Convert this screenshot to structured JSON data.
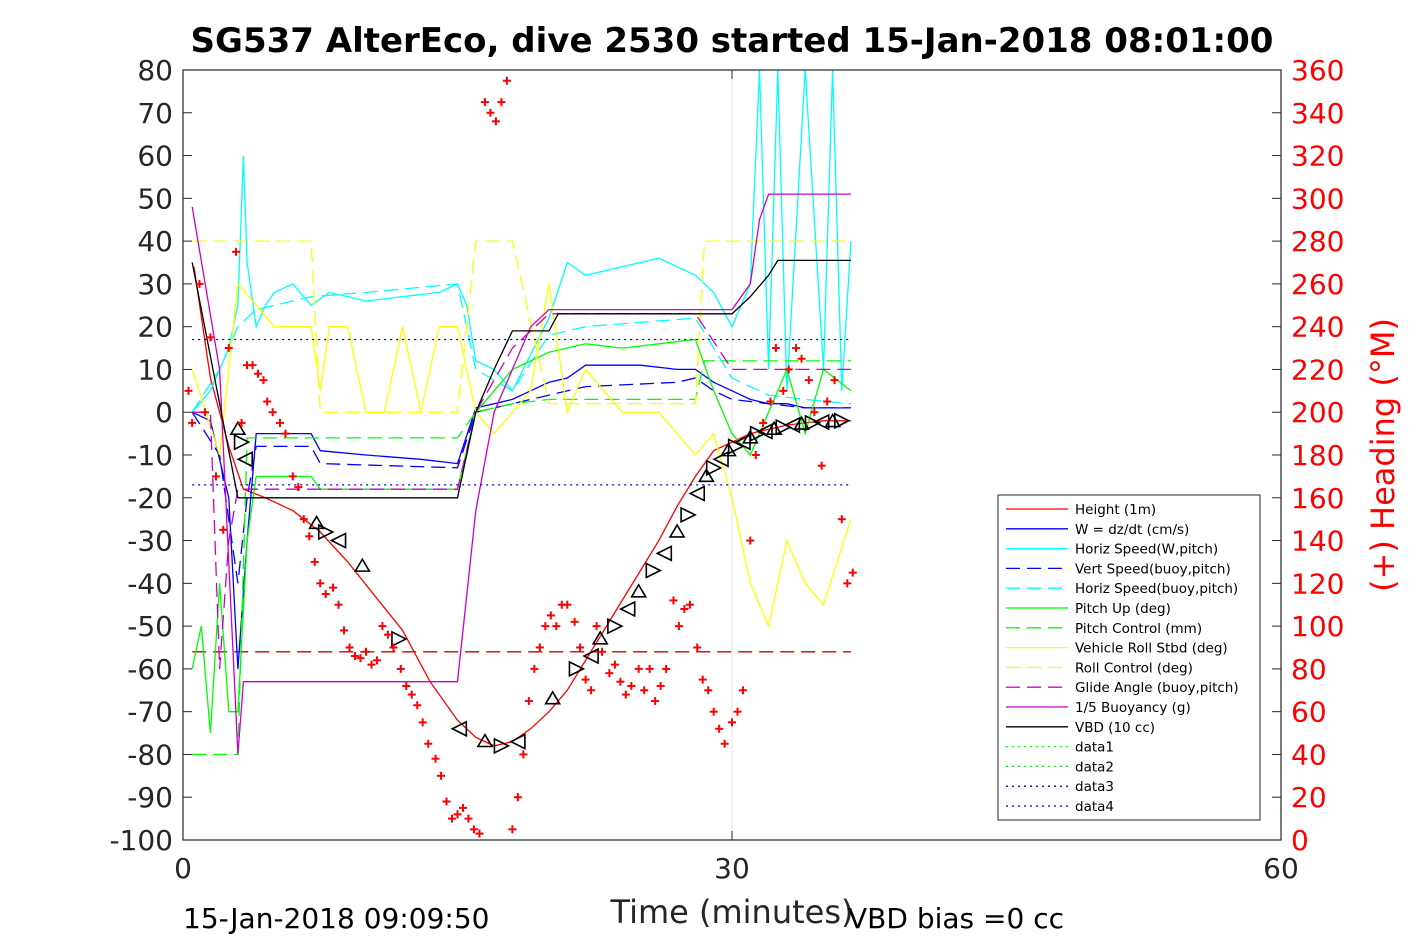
{
  "title": "SG537 AlterEco, dive 2530 started 15-Jan-2018 08:01:00",
  "footer": {
    "timestamp": "15-Jan-2018 09:09:50",
    "vbd_bias": "VBD bias =0 cc"
  },
  "chart_data": {
    "type": "line",
    "xlabel": "Time (minutes)",
    "ylabel": "",
    "y2label": "(+) Heading (°M)",
    "xlim": [
      0,
      60
    ],
    "ylim": [
      -100,
      80
    ],
    "y2lim": [
      0,
      360
    ],
    "xticks": [
      "0",
      "30",
      "60"
    ],
    "yticks": [
      "80",
      "70",
      "60",
      "50",
      "40",
      "30",
      "20",
      "10",
      "0",
      "-10",
      "-20",
      "-30",
      "-40",
      "-50",
      "-60",
      "-70",
      "-80",
      "-90",
      "-100"
    ],
    "y2ticks": [
      "360",
      "340",
      "320",
      "300",
      "280",
      "260",
      "240",
      "220",
      "200",
      "180",
      "160",
      "140",
      "120",
      "100",
      "80",
      "60",
      "40",
      "20",
      "0"
    ],
    "grid": "x-at-30",
    "legend_position": "bottom-right",
    "series": [
      {
        "name": "Height (1m)",
        "color": "#ff0000",
        "style": "solid",
        "x": [
          0.6,
          1.5,
          2.5,
          3.3,
          4.5,
          6,
          7.5,
          9,
          10.5,
          12,
          13.5,
          15,
          16,
          17,
          18,
          19,
          20,
          21,
          22,
          23,
          24,
          25,
          26,
          27,
          28,
          29,
          30,
          31,
          32,
          33,
          34,
          35,
          36.5
        ],
        "y": [
          34,
          8,
          -8,
          -18,
          -20,
          -23,
          -28,
          -35,
          -43,
          -51,
          -63,
          -72,
          -76,
          -78,
          -77,
          -74,
          -70,
          -65,
          -58,
          -51,
          -44,
          -37,
          -30,
          -22,
          -15,
          -9,
          -7,
          -5,
          -4,
          -3,
          -2.5,
          -2,
          -2
        ]
      },
      {
        "name": "W = dz/dt (cm/s)",
        "color": "#0000ff",
        "style": "solid",
        "x": [
          0.5,
          1.5,
          2.5,
          3,
          3.5,
          4,
          5,
          7,
          7.5,
          10,
          13,
          15,
          16,
          17,
          18,
          19,
          20,
          21,
          22,
          23,
          25,
          27,
          28,
          29,
          30,
          31,
          32,
          33,
          34,
          35,
          36.5
        ],
        "y": [
          0,
          -2,
          -20,
          -60,
          -30,
          -5,
          -5,
          -5,
          -9,
          -10,
          -11,
          -12,
          1,
          2,
          3,
          5,
          7,
          8,
          11,
          11,
          11,
          10,
          10,
          7,
          5,
          3,
          2,
          2,
          1,
          1,
          1
        ]
      },
      {
        "name": "Horiz Speed(W,pitch)",
        "color": "#00ffff",
        "style": "solid",
        "x": [
          0.5,
          1.5,
          2.5,
          3,
          3.3,
          3.5,
          4,
          4.5,
          5,
          6,
          7,
          8,
          10,
          12,
          14,
          15,
          15.5,
          16,
          17,
          18,
          20,
          21,
          22,
          24,
          26,
          28,
          29,
          30,
          31,
          31.5,
          32,
          32.5,
          33,
          34,
          35,
          35.5,
          36,
          36.5
        ],
        "y": [
          0,
          5,
          15,
          25,
          60,
          35,
          20,
          25,
          28,
          30,
          25,
          28,
          26,
          27,
          28,
          30,
          25,
          12,
          10,
          5,
          22,
          35,
          32,
          34,
          36,
          32,
          28,
          20,
          30,
          80,
          10,
          80,
          5,
          80,
          10,
          80,
          5,
          40
        ]
      },
      {
        "name": "Vert Speed(buoy,pitch)",
        "color": "#0000ff",
        "style": "dashed",
        "x": [
          0.5,
          2,
          3,
          3.5,
          4,
          7,
          7.5,
          15,
          16,
          18,
          20,
          22,
          27,
          28,
          29,
          30,
          32,
          34,
          36.5
        ],
        "y": [
          0,
          -10,
          -40,
          -20,
          -8,
          -8,
          -12,
          -13,
          0,
          2,
          4,
          6,
          7,
          8,
          5,
          3,
          2,
          1,
          1
        ]
      },
      {
        "name": "Horiz Speed(buoy,pitch)",
        "color": "#00ffff",
        "style": "dashed",
        "x": [
          0.5,
          2,
          3,
          4,
          7,
          10,
          15,
          16,
          18,
          20,
          22,
          28,
          30,
          32,
          34,
          36.5
        ],
        "y": [
          0,
          10,
          20,
          24,
          27,
          28,
          30,
          10,
          5,
          18,
          20,
          22,
          8,
          4,
          3,
          2
        ]
      },
      {
        "name": "Pitch Up (deg)",
        "color": "#00ff00",
        "style": "solid",
        "x": [
          0.5,
          1,
          1.5,
          2,
          2.5,
          3,
          3.5,
          4,
          5,
          7,
          7.5,
          10,
          13,
          15,
          16,
          17,
          18,
          20,
          22,
          24,
          26,
          28,
          29,
          30,
          31,
          32,
          33,
          34,
          35,
          36.5
        ],
        "y": [
          -60,
          -50,
          -75,
          -40,
          -70,
          -70,
          -30,
          -15,
          -15,
          -15,
          -18,
          -18,
          -18,
          -18,
          0,
          5,
          10,
          14,
          16,
          15,
          16,
          17,
          5,
          -5,
          -10,
          0,
          10,
          -5,
          10,
          5
        ]
      },
      {
        "name": "Pitch Control (mm)",
        "color": "#00ff00",
        "style": "dashed",
        "x": [
          0.5,
          2,
          3,
          3.5,
          5,
          15,
          16,
          18,
          20,
          28,
          28.5,
          30,
          36.5
        ],
        "y": [
          -80,
          -80,
          -80,
          -6,
          -6,
          -6,
          0,
          2,
          3,
          3,
          12,
          12,
          12
        ]
      },
      {
        "name": "Vehicle Roll Stbd (deg)",
        "color": "#ffff00",
        "style": "solid",
        "x": [
          0.5,
          2,
          3,
          4,
          5,
          7,
          7.5,
          8,
          9,
          10,
          11,
          12,
          13,
          14,
          15,
          16,
          17,
          18,
          19,
          20,
          21,
          22,
          24,
          26,
          28,
          29,
          30,
          31,
          32,
          33,
          34,
          35,
          36.5
        ],
        "y": [
          10,
          -10,
          30,
          25,
          20,
          20,
          5,
          20,
          20,
          0,
          0,
          20,
          0,
          20,
          20,
          0,
          -5,
          0,
          5,
          30,
          0,
          10,
          0,
          0,
          -10,
          -5,
          -20,
          -40,
          -50,
          -30,
          -40,
          -45,
          -25
        ]
      },
      {
        "name": "Roll Control (deg)",
        "color": "#ffff00",
        "style": "dashed",
        "x": [
          0.5,
          7,
          7.5,
          15,
          16,
          18,
          20,
          28,
          28.5,
          30,
          36.5
        ],
        "y": [
          40,
          40,
          0,
          0,
          40,
          40,
          2,
          2,
          40,
          40,
          40
        ]
      },
      {
        "name": "Glide Angle (buoy,pitch)",
        "color": "#cc00cc",
        "style": "dashed",
        "x": [
          0.5,
          1.5,
          2,
          2.5,
          3,
          4,
          5,
          15,
          16,
          18,
          20,
          28,
          30,
          36.5
        ],
        "y": [
          0,
          0,
          -60,
          -30,
          -18,
          -18,
          -18,
          -18,
          0,
          15,
          23,
          23,
          10,
          10
        ]
      },
      {
        "name": "1/5 Buoyancy (g)",
        "color": "#cc00cc",
        "style": "solid",
        "x": [
          0.5,
          2,
          3,
          3.3,
          3.6,
          15,
          16,
          17,
          18,
          19,
          20,
          30,
          31,
          31.5,
          32,
          36.5
        ],
        "y": [
          48,
          10,
          -80,
          -63,
          -63,
          -63,
          -23,
          0,
          10,
          20,
          24,
          24,
          30,
          45,
          51,
          51
        ]
      },
      {
        "name": "VBD (10 cc)",
        "color": "#000000",
        "style": "solid",
        "x": [
          0.5,
          3,
          3.5,
          15,
          16,
          17,
          18,
          20,
          20.5,
          30,
          31,
          32,
          32.5,
          36.5
        ],
        "y": [
          35,
          -20,
          -20,
          -20,
          0,
          10,
          19,
          19,
          23,
          23,
          27,
          32,
          35.5,
          35.5
        ]
      },
      {
        "name": "data1",
        "color": "#00ff00",
        "style": "dotted",
        "x": [
          0
        ],
        "y": [
          0
        ]
      },
      {
        "name": "data2",
        "color": "#00ff00",
        "style": "dotted",
        "x": [
          0
        ],
        "y": [
          0
        ]
      },
      {
        "name": "data3",
        "color": "#0000aa",
        "style": "dotted",
        "x": [
          0.5,
          36.5
        ],
        "y": [
          17,
          17
        ]
      },
      {
        "name": "data4",
        "color": "#0000aa",
        "style": "dotted",
        "x": [
          0.5,
          36.5
        ],
        "y": [
          -17,
          -17
        ]
      }
    ],
    "extra_lines": [
      {
        "color": "#cc0000",
        "style": "dashed",
        "x": [
          0.5,
          36.5
        ],
        "y": [
          -56,
          -56
        ]
      }
    ],
    "heading_points": {
      "marker": "+",
      "color": "#ff0000",
      "axis": "right",
      "x": [
        0.3,
        0.5,
        0.9,
        1.2,
        1.5,
        1.8,
        2.2,
        2.5,
        2.9,
        3.2,
        3.5,
        3.8,
        4.1,
        4.4,
        4.6,
        4.9,
        5.3,
        5.6,
        6.0,
        6.3,
        6.6,
        6.9,
        7.2,
        7.5,
        7.8,
        8.2,
        8.5,
        8.8,
        9.1,
        9.4,
        9.7,
        10.0,
        10.3,
        10.6,
        10.9,
        11.2,
        11.5,
        11.9,
        12.2,
        12.5,
        12.8,
        13.1,
        13.4,
        13.8,
        14.1,
        14.4,
        14.7,
        15.0,
        15.3,
        15.6,
        15.9,
        16.2,
        16.5,
        16.8,
        17.1,
        17.4,
        17.7,
        18.0,
        18.3,
        18.6,
        18.9,
        19.2,
        19.5,
        19.8,
        20.1,
        20.4,
        20.7,
        21.0,
        21.4,
        21.7,
        22.0,
        22.3,
        22.6,
        22.9,
        23.3,
        23.6,
        23.9,
        24.2,
        24.5,
        24.9,
        25.2,
        25.5,
        25.8,
        26.1,
        26.4,
        26.8,
        27.1,
        27.4,
        27.7,
        28.1,
        28.4,
        28.7,
        29.0,
        29.3,
        29.6,
        30.0,
        30.3,
        30.6,
        31.0,
        31.3,
        31.7,
        32.1,
        32.4,
        32.8,
        33.1,
        33.5,
        33.8,
        34.2,
        34.5,
        34.9,
        35.2,
        35.6,
        36.0,
        36.3,
        36.6
      ],
      "y": [
        210,
        195,
        260,
        200,
        235,
        170,
        145,
        230,
        275,
        195,
        222,
        222,
        218,
        215,
        205,
        200,
        195,
        190,
        170,
        165,
        150,
        142,
        130,
        120,
        115,
        118,
        110,
        98,
        90,
        86,
        85,
        88,
        82,
        84,
        100,
        96,
        90,
        80,
        72,
        68,
        63,
        55,
        45,
        38,
        30,
        18,
        10,
        12,
        15,
        10,
        5,
        3,
        345,
        340,
        336,
        345,
        355,
        5,
        20,
        40,
        65,
        80,
        90,
        100,
        105,
        100,
        110,
        110,
        102,
        90,
        75,
        70,
        100,
        88,
        78,
        82,
        74,
        68,
        72,
        80,
        70,
        80,
        65,
        72,
        80,
        112,
        100,
        108,
        110,
        90,
        75,
        70,
        60,
        52,
        45,
        55,
        60,
        70,
        140,
        180,
        195,
        205,
        230,
        210,
        220,
        230,
        225,
        215,
        200,
        175,
        205,
        215,
        150,
        120,
        125
      ]
    },
    "triangle_markers": {
      "color": "#000000",
      "on_series": "Height (1m)",
      "x": [
        3.0,
        3.2,
        3.4,
        7.3,
        7.8,
        8.5,
        9.8,
        11.8,
        15.1,
        16.5,
        17.4,
        18.3,
        20.2,
        21.5,
        22.3,
        22.8,
        23.6,
        24.3,
        24.9,
        25.7,
        26.3,
        27.0,
        27.6,
        28.1,
        28.6,
        29.0,
        29.4,
        29.8,
        30.2,
        30.6,
        31.0,
        31.4,
        31.8,
        32.3,
        32.8,
        33.3,
        33.8,
        34.4,
        34.9,
        35.5,
        36.0
      ],
      "y": [
        -4,
        -7,
        -11,
        -26,
        -28,
        -30,
        -36,
        -53,
        -74,
        -77,
        -78,
        -77,
        -67,
        -60,
        -57,
        -53,
        -50,
        -46,
        -42,
        -37,
        -33,
        -28,
        -24,
        -19,
        -15,
        -13,
        -11,
        -9,
        -8,
        -7,
        -6,
        -5,
        -4.5,
        -4,
        -3.5,
        -3,
        -2.8,
        -2.5,
        -2.3,
        -2.2,
        -2
      ]
    }
  }
}
